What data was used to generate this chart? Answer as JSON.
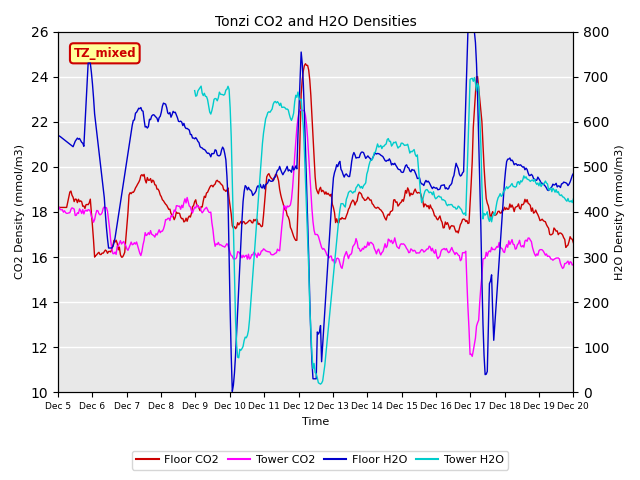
{
  "title": "Tonzi CO2 and H2O Densities",
  "xlabel": "Time",
  "ylabel_left": "CO2 Density (mmol/m3)",
  "ylabel_right": "H2O Density (mmol/m3)",
  "ylim_left": [
    10,
    26
  ],
  "ylim_right": [
    0,
    800
  ],
  "yticks_left": [
    10,
    12,
    14,
    16,
    18,
    20,
    22,
    24,
    26
  ],
  "yticks_right": [
    0,
    100,
    200,
    300,
    400,
    500,
    600,
    700,
    800
  ],
  "xtick_labels": [
    "Dec 5",
    "Dec 6",
    "Dec 7",
    "Dec 8",
    "Dec 9",
    "Dec 10",
    "Dec 11",
    "Dec 12",
    "Dec 13",
    "Dec 14",
    "Dec 15",
    "Dec 16",
    "Dec 17",
    "Dec 18",
    "Dec 19",
    "Dec 20"
  ],
  "annotation_text": "TZ_mixed",
  "annotation_color": "#cc0000",
  "annotation_bg": "#ffff99",
  "annotation_border": "#cc0000",
  "floor_co2_color": "#cc0000",
  "tower_co2_color": "#ff00ff",
  "floor_h2o_color": "#0000cc",
  "tower_h2o_color": "#00cccc",
  "legend_labels": [
    "Floor CO2",
    "Tower CO2",
    "Floor H2O",
    "Tower H2O"
  ],
  "bg_color": "#e8e8e8",
  "grid_color": "#ffffff"
}
